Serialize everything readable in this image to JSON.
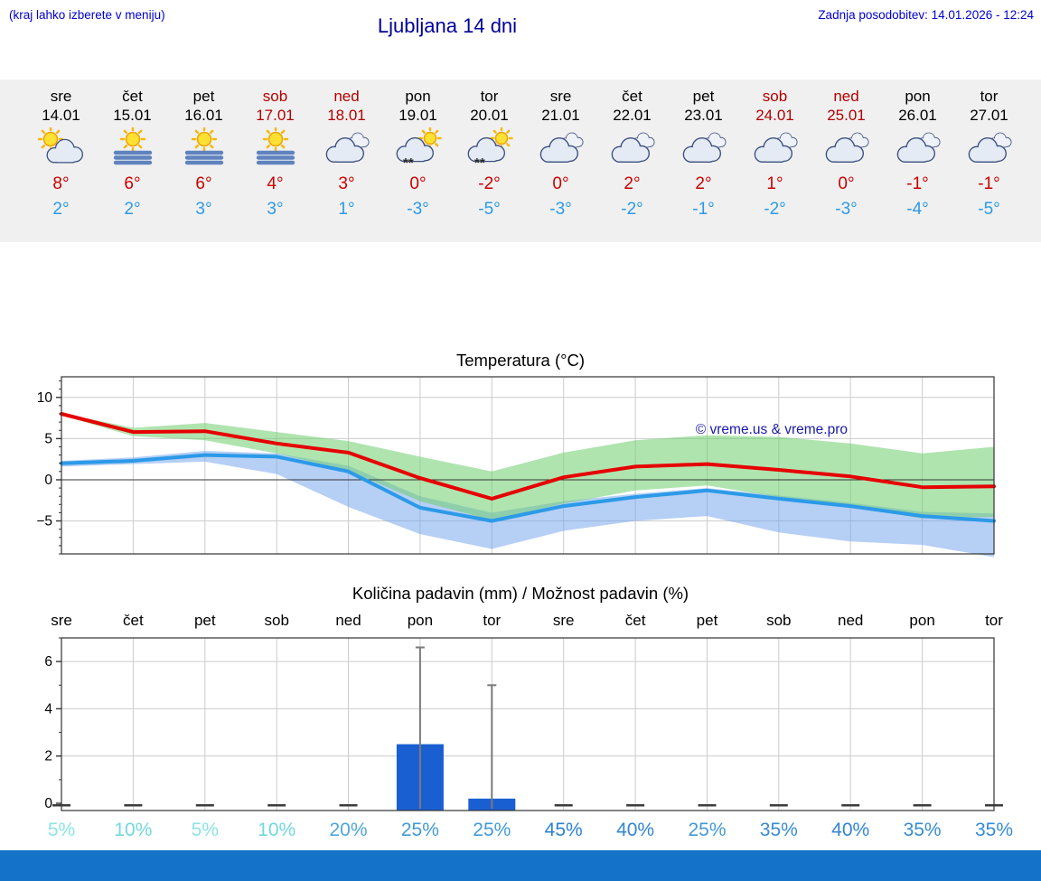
{
  "header": {
    "left_note": "(kraj lahko izberete v meniju)",
    "title": "Ljubljana 14 dni",
    "last_update": "Zadnja posodobitev: 14.01.2026 - 12:24"
  },
  "colors": {
    "header_blue": "#0000cd",
    "title_blue": "#000099",
    "weekend_red": "#b30000",
    "tmax_red": "#cc0000",
    "tmin_blue": "#2b9ae8",
    "strip_bg": "#f0f0f0",
    "bottom_bar": "#1472c8"
  },
  "forecast_days": [
    {
      "day": "sre",
      "date": "14.01",
      "weekend": false,
      "icon": "sun-cloud",
      "tmax": "8°",
      "tmin": "2°"
    },
    {
      "day": "čet",
      "date": "15.01",
      "weekend": false,
      "icon": "sun-fog",
      "tmax": "6°",
      "tmin": "2°"
    },
    {
      "day": "pet",
      "date": "16.01",
      "weekend": false,
      "icon": "sun-fog",
      "tmax": "6°",
      "tmin": "3°"
    },
    {
      "day": "sob",
      "date": "17.01",
      "weekend": true,
      "icon": "sun-fog",
      "tmax": "4°",
      "tmin": "3°"
    },
    {
      "day": "ned",
      "date": "18.01",
      "weekend": true,
      "icon": "cloud",
      "tmax": "3°",
      "tmin": "1°"
    },
    {
      "day": "pon",
      "date": "19.01",
      "weekend": false,
      "icon": "sun-cloud-snow",
      "tmax": "0°",
      "tmin": "-3°"
    },
    {
      "day": "tor",
      "date": "20.01",
      "weekend": false,
      "icon": "sun-cloud-snow",
      "tmax": "-2°",
      "tmin": "-5°"
    },
    {
      "day": "sre",
      "date": "21.01",
      "weekend": false,
      "icon": "cloud",
      "tmax": "0°",
      "tmin": "-3°"
    },
    {
      "day": "čet",
      "date": "22.01",
      "weekend": false,
      "icon": "cloud",
      "tmax": "2°",
      "tmin": "-2°"
    },
    {
      "day": "pet",
      "date": "23.01",
      "weekend": false,
      "icon": "cloud",
      "tmax": "2°",
      "tmin": "-1°"
    },
    {
      "day": "sob",
      "date": "24.01",
      "weekend": true,
      "icon": "cloud",
      "tmax": "1°",
      "tmin": "-2°"
    },
    {
      "day": "ned",
      "date": "25.01",
      "weekend": true,
      "icon": "cloud",
      "tmax": "0°",
      "tmin": "-3°"
    },
    {
      "day": "pon",
      "date": "26.01",
      "weekend": false,
      "icon": "cloud",
      "tmax": "-1°",
      "tmin": "-4°"
    },
    {
      "day": "tor",
      "date": "27.01",
      "weekend": false,
      "icon": "cloud",
      "tmax": "-1°",
      "tmin": "-5°"
    }
  ],
  "chart_data": [
    {
      "type": "line",
      "title": "Temperatura (°C)",
      "categories": [
        "sre",
        "čet",
        "pet",
        "sob",
        "ned",
        "pon",
        "tor",
        "sre",
        "čet",
        "pet",
        "sob",
        "ned",
        "pon",
        "tor"
      ],
      "ylim": [
        -9,
        12.5
      ],
      "yticks": [
        -5,
        0,
        5,
        10
      ],
      "grid": true,
      "legend": "none",
      "watermark": "© vreme.us & vreme.pro",
      "series": [
        {
          "name": "max-temp",
          "color": "#e60000",
          "values": [
            8,
            5.8,
            5.9,
            4.4,
            3.3,
            0.2,
            -2.3,
            0.3,
            1.6,
            1.9,
            1.2,
            0.4,
            -0.9,
            -0.8
          ]
        },
        {
          "name": "min-temp",
          "color": "#2b9ae8",
          "values": [
            2,
            2.3,
            3.0,
            2.8,
            1.0,
            -3.4,
            -5.0,
            -3.2,
            -2.1,
            -1.3,
            -2.3,
            -3.2,
            -4.4,
            -5.0
          ]
        }
      ],
      "bands": [
        {
          "name": "min-temp-range",
          "color": "rgba(110,160,235,0.50)",
          "upper": [
            2.3,
            2.7,
            3.5,
            3.2,
            1.7,
            -2.0,
            -4.0,
            -2.6,
            -1.7,
            -1.0,
            -1.9,
            -2.8,
            -3.9,
            -4.1
          ],
          "lower": [
            1.6,
            1.9,
            2.2,
            0.7,
            -3.3,
            -6.6,
            -8.4,
            -6.2,
            -5.0,
            -4.4,
            -6.4,
            -7.5,
            -7.9,
            -9.4
          ]
        },
        {
          "name": "max-temp-range",
          "color": "rgba(110,205,110,0.55)",
          "upper": [
            8.1,
            6.3,
            6.9,
            5.8,
            4.7,
            2.8,
            1.0,
            3.3,
            4.8,
            5.4,
            5.2,
            4.4,
            3.2,
            4.0
          ],
          "lower": [
            7.8,
            5.3,
            4.8,
            3.2,
            1.1,
            -2.6,
            -4.9,
            -2.9,
            -1.3,
            -0.7,
            -2.1,
            -3.3,
            -4.7,
            -4.5
          ]
        }
      ]
    },
    {
      "type": "bar",
      "title": "Količina padavin (mm) / Možnost padavin (%)",
      "categories": [
        "sre",
        "čet",
        "pet",
        "sob",
        "ned",
        "pon",
        "tor",
        "sre",
        "čet",
        "pet",
        "sob",
        "ned",
        "pon",
        "tor"
      ],
      "ylim": [
        0,
        7
      ],
      "yticks": [
        0,
        2,
        4,
        6
      ],
      "values": [
        0,
        0,
        0,
        0,
        0,
        2.5,
        0.2,
        0,
        0,
        0,
        0,
        0,
        0,
        0
      ],
      "whiskers": [
        0,
        0,
        0,
        0,
        0,
        6.6,
        5.0,
        0,
        0,
        0,
        0,
        0,
        0,
        0
      ],
      "bar_color": "#1a5fd2",
      "whisker_color": "#7a7a7a",
      "probabilities": [
        {
          "label": "5%",
          "color": "#8ce4e4"
        },
        {
          "label": "10%",
          "color": "#72d8dc"
        },
        {
          "label": "5%",
          "color": "#8ce4e4"
        },
        {
          "label": "10%",
          "color": "#72d8dc"
        },
        {
          "label": "20%",
          "color": "#4fa6da"
        },
        {
          "label": "25%",
          "color": "#429ad8"
        },
        {
          "label": "25%",
          "color": "#429ad8"
        },
        {
          "label": "45%",
          "color": "#2d80d0"
        },
        {
          "label": "40%",
          "color": "#3186d2"
        },
        {
          "label": "25%",
          "color": "#429ad8"
        },
        {
          "label": "35%",
          "color": "#368cd4"
        },
        {
          "label": "40%",
          "color": "#3186d2"
        },
        {
          "label": "35%",
          "color": "#368cd4"
        },
        {
          "label": "35%",
          "color": "#368cd4"
        }
      ]
    }
  ]
}
